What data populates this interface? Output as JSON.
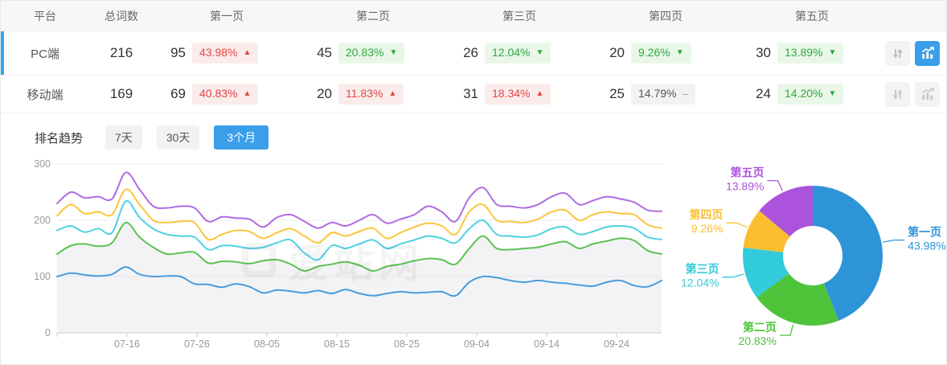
{
  "table": {
    "headers": [
      "平台",
      "总词数",
      "第一页",
      "第二页",
      "第三页",
      "第四页",
      "第五页"
    ],
    "rows": [
      {
        "platform": "PC端",
        "total": "216",
        "selected": true,
        "chart_active": true,
        "pages": [
          {
            "count": "95",
            "pct": "43.98%",
            "trend": "up"
          },
          {
            "count": "45",
            "pct": "20.83%",
            "trend": "down"
          },
          {
            "count": "26",
            "pct": "12.04%",
            "trend": "down"
          },
          {
            "count": "20",
            "pct": "9.26%",
            "trend": "down"
          },
          {
            "count": "30",
            "pct": "13.89%",
            "trend": "down"
          }
        ]
      },
      {
        "platform": "移动端",
        "total": "169",
        "selected": false,
        "chart_active": false,
        "pages": [
          {
            "count": "69",
            "pct": "40.83%",
            "trend": "up"
          },
          {
            "count": "20",
            "pct": "11.83%",
            "trend": "up"
          },
          {
            "count": "31",
            "pct": "18.34%",
            "trend": "up"
          },
          {
            "count": "25",
            "pct": "14.79%",
            "trend": "flat"
          },
          {
            "count": "24",
            "pct": "14.20%",
            "trend": "down"
          }
        ]
      }
    ],
    "trend_glyphs": {
      "up": "▲",
      "down": "▼",
      "flat": "−"
    }
  },
  "trend": {
    "title": "排名趋势",
    "ranges": [
      {
        "label": "7天",
        "active": false
      },
      {
        "label": "30天",
        "active": false
      },
      {
        "label": "3个月",
        "active": true
      }
    ]
  },
  "watermark": {
    "text": "爱站网"
  },
  "colors": {
    "accent_blue": "#3a9ee9",
    "badge_up_bg": "#fbecec",
    "badge_up_text": "#e24444",
    "badge_down_bg": "#e9f7e9",
    "badge_down_text": "#2fa83c",
    "badge_flat_bg": "#f2f2f2",
    "badge_flat_text": "#555555",
    "grid_line": "#eeeeee",
    "axis_line": "#cccccc",
    "tick_text": "#999999"
  },
  "chart_data": [
    {
      "type": "line",
      "title": "排名趋势 3个月",
      "x_ticks": [
        "07-16",
        "07-26",
        "08-05",
        "08-15",
        "08-25",
        "09-04",
        "09-14",
        "09-24"
      ],
      "y_ticks": [
        0,
        100,
        200,
        300
      ],
      "ylim": [
        0,
        300
      ],
      "grid": true,
      "note": "stacked cumulative keyword-count lines as plotted; bottom-up order 第一页→第五页(total)",
      "series": [
        {
          "name": "第一页",
          "color": "#4a9cdb",
          "area": false,
          "values": [
            100,
            106,
            103,
            101,
            104,
            117,
            104,
            100,
            101,
            100,
            87,
            86,
            81,
            87,
            82,
            71,
            76,
            74,
            71,
            75,
            70,
            77,
            70,
            66,
            70,
            73,
            71,
            72,
            73,
            66,
            90,
            100,
            98,
            93,
            90,
            93,
            90,
            88,
            85,
            83,
            90,
            93,
            84,
            82,
            93
          ]
        },
        {
          "name": "第二页",
          "color": "#5bc254",
          "area": true,
          "values": [
            140,
            155,
            158,
            154,
            160,
            196,
            170,
            152,
            140,
            142,
            143,
            124,
            127,
            126,
            123,
            128,
            130,
            122,
            110,
            118,
            122,
            126,
            120,
            110,
            118,
            122,
            128,
            132,
            130,
            122,
            150,
            172,
            150,
            148,
            150,
            152,
            158,
            162,
            150,
            158,
            163,
            168,
            164,
            146,
            140
          ]
        },
        {
          "name": "第三页",
          "color": "#4fd2e2",
          "area": false,
          "values": [
            182,
            190,
            179,
            185,
            178,
            234,
            205,
            185,
            175,
            172,
            170,
            148,
            155,
            154,
            150,
            152,
            160,
            165,
            142,
            130,
            155,
            150,
            158,
            165,
            150,
            158,
            165,
            172,
            168,
            160,
            185,
            200,
            175,
            172,
            170,
            174,
            185,
            188,
            175,
            180,
            188,
            190,
            186,
            170,
            166
          ]
        },
        {
          "name": "第四页",
          "color": "#fbc53d",
          "area": false,
          "values": [
            208,
            228,
            212,
            215,
            210,
            255,
            228,
            200,
            196,
            198,
            196,
            166,
            175,
            182,
            180,
            168,
            178,
            185,
            172,
            160,
            178,
            172,
            180,
            186,
            168,
            178,
            188,
            195,
            190,
            175,
            215,
            228,
            200,
            198,
            196,
            202,
            215,
            218,
            200,
            210,
            215,
            212,
            210,
            192,
            186
          ]
        },
        {
          "name": "第五页",
          "color": "#af6cde",
          "area": false,
          "values": [
            230,
            250,
            240,
            242,
            238,
            285,
            255,
            225,
            222,
            225,
            222,
            198,
            206,
            204,
            202,
            188,
            205,
            210,
            198,
            186,
            196,
            190,
            200,
            210,
            195,
            202,
            210,
            225,
            215,
            198,
            240,
            258,
            228,
            225,
            222,
            228,
            242,
            248,
            228,
            235,
            242,
            238,
            232,
            218,
            216
          ]
        }
      ],
      "area_fill": "rgba(180,180,190,0.16)"
    },
    {
      "type": "pie",
      "donut": true,
      "slices": [
        {
          "name": "第一页",
          "pct": 43.98,
          "color": "#2e94d8"
        },
        {
          "name": "第二页",
          "pct": 20.83,
          "color": "#4ec43b"
        },
        {
          "name": "第三页",
          "pct": 12.04,
          "color": "#32cbda"
        },
        {
          "name": "第四页",
          "pct": 9.26,
          "color": "#fbbe30"
        },
        {
          "name": "第五页",
          "pct": 13.89,
          "color": "#ab53dc"
        }
      ]
    }
  ]
}
